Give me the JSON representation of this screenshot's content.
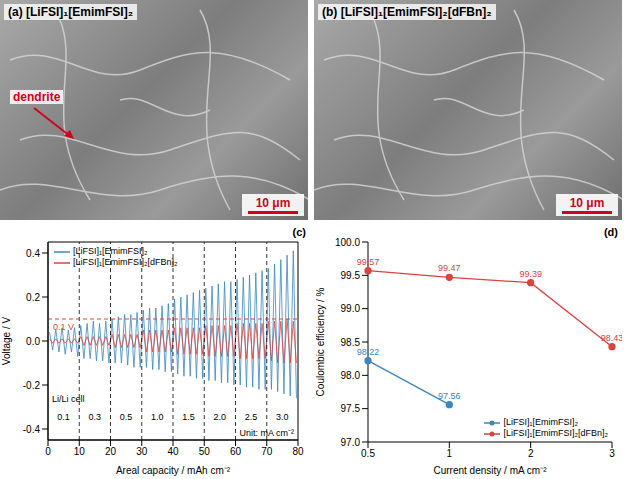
{
  "images": [
    {
      "letter": "(a)",
      "title": "[LiFSI]₁[EmimFSI]₂",
      "annotation": "dendrite",
      "scale_bar": "10 μm"
    },
    {
      "letter": "(b)",
      "title": "[LiFSI]₁[EmimFSI]₂[dFBn]₂",
      "scale_bar": "10 μm"
    }
  ],
  "chart_data": [
    {
      "type": "line",
      "letter": "(c)",
      "x_label": "Areal capacity / mAh cm⁻²",
      "y_label": "Voltage / V",
      "x": [
        0.5,
        1.5,
        2.5,
        3.5,
        4.5,
        5.5,
        6.5,
        7.5,
        8.5,
        9.5,
        10.5,
        11.5,
        12.5,
        13.5,
        14.5,
        15.5,
        16.5,
        17.5,
        18.5,
        19.5,
        20.5,
        21.5,
        22.5,
        23.5,
        24.5,
        25.5,
        26.5,
        27.5,
        28.5,
        29.5,
        30.5,
        31.5,
        32.5,
        33.5,
        34.5,
        35.5,
        36.5,
        37.5,
        38.5,
        39.5,
        40.5,
        41.5,
        42.5,
        43.5,
        44.5,
        45.5,
        46.5,
        47.5,
        48.5,
        49.5,
        50.5,
        51.5,
        52.5,
        53.5,
        54.5,
        55.5,
        56.5,
        57.5,
        58.5,
        59.5,
        60.5,
        61.5,
        62.5,
        63.5,
        64.5,
        65.5,
        66.5,
        67.5,
        68.5,
        69.5,
        70.5,
        71.5,
        72.5,
        73.5,
        74.5,
        75.5,
        76.5,
        77.5,
        78.5,
        79.5
      ],
      "series": [
        {
          "name": "[LiFSI]₁[EmimFSI]₂",
          "color": "#3a87c0",
          "values": [
            0.04,
            -0.04,
            0.05,
            -0.05,
            0.06,
            -0.06,
            0.05,
            -0.05,
            0.06,
            -0.07,
            0.07,
            -0.08,
            0.08,
            -0.08,
            0.09,
            -0.09,
            0.08,
            -0.09,
            0.09,
            -0.1,
            0.1,
            -0.1,
            0.11,
            -0.1,
            0.12,
            -0.11,
            0.12,
            -0.12,
            0.13,
            -0.12,
            0.14,
            -0.12,
            0.15,
            -0.13,
            0.15,
            -0.13,
            0.16,
            -0.14,
            0.17,
            -0.14,
            0.19,
            -0.15,
            0.2,
            -0.16,
            0.21,
            -0.16,
            0.22,
            -0.17,
            0.23,
            -0.17,
            0.24,
            -0.18,
            0.25,
            -0.18,
            0.26,
            -0.19,
            0.27,
            -0.19,
            0.27,
            -0.2,
            0.28,
            -0.2,
            0.29,
            -0.21,
            0.3,
            -0.21,
            0.31,
            -0.22,
            0.32,
            -0.22,
            0.33,
            -0.22,
            0.35,
            -0.23,
            0.37,
            -0.24,
            0.39,
            -0.25,
            0.41,
            -0.26
          ]
        },
        {
          "name": "[LiFSI]₁[EmimFSI]₂[dFBn]₂",
          "color": "#d9443f",
          "values": [
            0.01,
            -0.01,
            0.01,
            -0.01,
            0.01,
            -0.01,
            0.01,
            -0.01,
            0.01,
            -0.01,
            0.02,
            -0.02,
            0.02,
            -0.02,
            0.02,
            -0.02,
            0.02,
            -0.02,
            0.02,
            -0.02,
            0.03,
            -0.03,
            0.03,
            -0.03,
            0.03,
            -0.03,
            0.03,
            -0.03,
            0.03,
            -0.03,
            0.05,
            -0.05,
            0.05,
            -0.05,
            0.05,
            -0.05,
            0.05,
            -0.05,
            0.05,
            -0.05,
            0.06,
            -0.06,
            0.06,
            -0.06,
            0.06,
            -0.06,
            0.06,
            -0.06,
            0.06,
            -0.06,
            0.07,
            -0.07,
            0.07,
            -0.07,
            0.07,
            -0.07,
            0.07,
            -0.07,
            0.07,
            -0.07,
            0.08,
            -0.08,
            0.08,
            -0.08,
            0.08,
            -0.08,
            0.08,
            -0.08,
            0.08,
            -0.08,
            0.09,
            -0.09,
            0.09,
            -0.1,
            0.09,
            -0.1,
            0.1,
            -0.1,
            0.09,
            -0.1
          ]
        }
      ],
      "xlim": [
        0,
        80
      ],
      "xticks": [
        0,
        10,
        20,
        30,
        40,
        50,
        60,
        70,
        80
      ],
      "ylim": [
        -0.45,
        0.45
      ],
      "yticks": [
        -0.4,
        -0.2,
        {
          "value": 0,
          "label": "0.0"
        },
        0.2,
        0.4
      ],
      "legend": "upper left",
      "reference_line": {
        "value": 0.1,
        "label": "0.1 V"
      },
      "segments": [
        {
          "label": "0.1",
          "from": 0,
          "to": 10
        },
        {
          "label": "0.3",
          "from": 10,
          "to": 20
        },
        {
          "label": "0.5",
          "from": 20,
          "to": 30
        },
        {
          "label": "1.0",
          "from": 30,
          "to": 40
        },
        {
          "label": "1.5",
          "from": 40,
          "to": 50
        },
        {
          "label": "2.0",
          "from": 50,
          "to": 60
        },
        {
          "label": "2.5",
          "from": 60,
          "to": 70
        },
        {
          "label": "3.0",
          "from": 70,
          "to": 80
        }
      ],
      "annotations": [
        "Li/Li cell",
        "Unit: mA cm⁻²"
      ]
    },
    {
      "type": "line",
      "letter": "(d)",
      "x_label": "Current density / mA cm⁻²",
      "y_label": "Coulombic efficiency / %",
      "categories": [
        "0.5",
        "1",
        "2",
        "3"
      ],
      "series": [
        {
          "name": "[LiFSI]₁[EmimFSI]₂",
          "color": "#3a87c0",
          "values": [
            98.22,
            97.56,
            null,
            null
          ]
        },
        {
          "name": "[LiFSI]₁[EmimFSI]₂[dFBn]₂",
          "color": "#d9443f",
          "values": [
            99.57,
            99.47,
            99.39,
            98.43
          ]
        }
      ],
      "ylim": [
        97,
        100
      ],
      "yticks": [
        {
          "value": 97,
          "label": "97.0"
        },
        97.5,
        {
          "value": 98,
          "label": "98.0"
        },
        98.5,
        {
          "value": 99,
          "label": "99.0"
        },
        99.5,
        {
          "value": 100,
          "label": "100.0"
        }
      ],
      "legend": "lower right",
      "data_labels": true,
      "marker": "o"
    }
  ]
}
